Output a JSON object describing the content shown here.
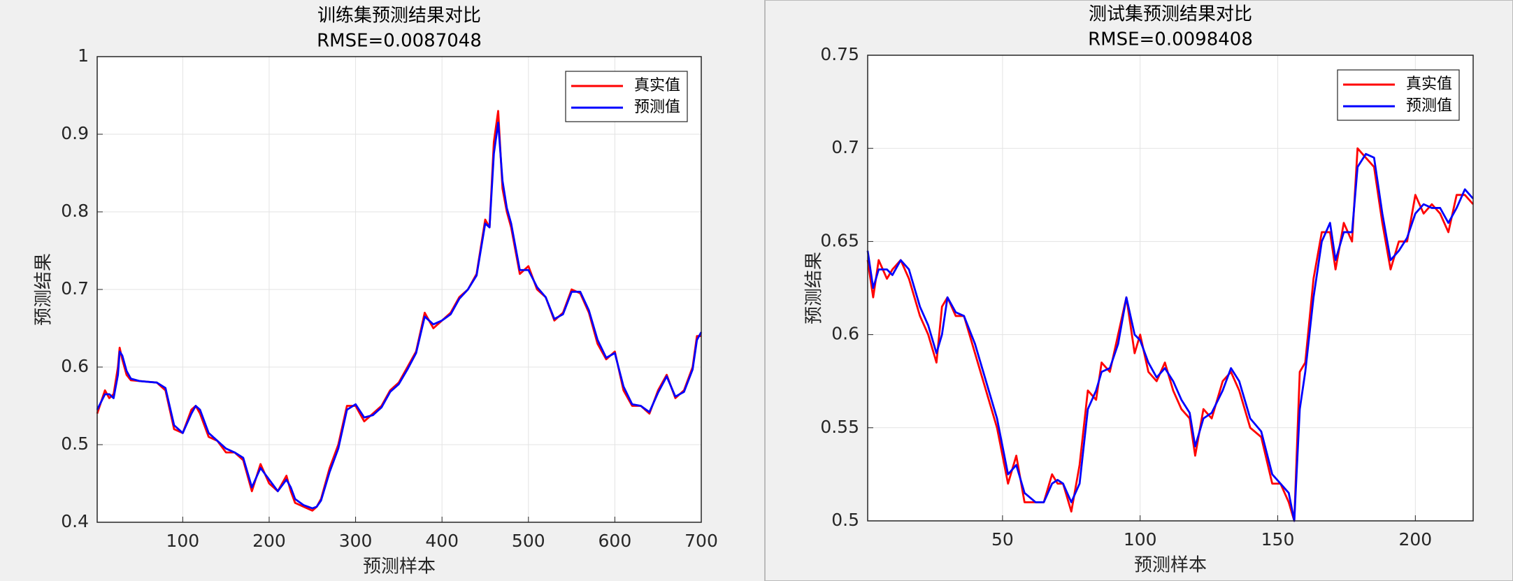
{
  "chart_data": [
    {
      "type": "line",
      "title": "训练集预测结果对比",
      "subtitle": "RMSE=0.0087048",
      "x_label": "预测样本",
      "y_label": "预测结果",
      "xlim": [
        1,
        700
      ],
      "ylim": [
        0.4,
        1
      ],
      "xticks": [
        100,
        200,
        300,
        400,
        500,
        600,
        700
      ],
      "yticks": [
        0.4,
        0.5,
        0.6,
        0.7,
        0.8,
        0.9,
        1
      ],
      "grid": true,
      "legend": "northeast",
      "x": [
        1,
        10,
        15,
        20,
        25,
        27,
        30,
        35,
        40,
        50,
        60,
        70,
        80,
        90,
        100,
        110,
        115,
        120,
        130,
        140,
        150,
        160,
        170,
        180,
        190,
        200,
        210,
        220,
        225,
        230,
        240,
        250,
        255,
        260,
        270,
        280,
        290,
        300,
        310,
        320,
        330,
        340,
        350,
        360,
        370,
        380,
        390,
        400,
        410,
        420,
        430,
        440,
        450,
        455,
        460,
        465,
        470,
        475,
        480,
        490,
        500,
        510,
        520,
        530,
        540,
        550,
        560,
        570,
        580,
        590,
        600,
        610,
        620,
        630,
        640,
        650,
        660,
        670,
        680,
        690,
        695,
        700
      ],
      "series": [
        {
          "name": "真实值",
          "color": "#ff0000",
          "values": [
            0.54,
            0.57,
            0.56,
            0.565,
            0.6,
            0.625,
            0.61,
            0.59,
            0.583,
            0.582,
            0.581,
            0.58,
            0.57,
            0.52,
            0.515,
            0.545,
            0.55,
            0.54,
            0.51,
            0.505,
            0.49,
            0.49,
            0.48,
            0.44,
            0.475,
            0.45,
            0.44,
            0.46,
            0.44,
            0.425,
            0.42,
            0.415,
            0.42,
            0.43,
            0.47,
            0.5,
            0.55,
            0.55,
            0.53,
            0.54,
            0.55,
            0.57,
            0.58,
            0.6,
            0.62,
            0.67,
            0.65,
            0.66,
            0.67,
            0.69,
            0.7,
            0.72,
            0.79,
            0.78,
            0.89,
            0.93,
            0.83,
            0.8,
            0.78,
            0.72,
            0.73,
            0.7,
            0.69,
            0.66,
            0.67,
            0.7,
            0.695,
            0.67,
            0.63,
            0.61,
            0.62,
            0.57,
            0.55,
            0.55,
            0.54,
            0.57,
            0.59,
            0.56,
            0.57,
            0.6,
            0.64,
            0.64
          ]
        },
        {
          "name": "预测值",
          "color": "#0000ff",
          "values": [
            0.545,
            0.565,
            0.565,
            0.56,
            0.59,
            0.62,
            0.615,
            0.595,
            0.585,
            0.582,
            0.581,
            0.58,
            0.573,
            0.525,
            0.515,
            0.54,
            0.55,
            0.545,
            0.515,
            0.505,
            0.495,
            0.49,
            0.483,
            0.445,
            0.47,
            0.455,
            0.44,
            0.455,
            0.445,
            0.43,
            0.422,
            0.418,
            0.42,
            0.428,
            0.465,
            0.495,
            0.545,
            0.552,
            0.535,
            0.538,
            0.548,
            0.568,
            0.578,
            0.597,
            0.618,
            0.665,
            0.655,
            0.66,
            0.668,
            0.688,
            0.7,
            0.718,
            0.785,
            0.78,
            0.875,
            0.915,
            0.84,
            0.805,
            0.785,
            0.725,
            0.725,
            0.703,
            0.69,
            0.662,
            0.668,
            0.697,
            0.697,
            0.673,
            0.635,
            0.612,
            0.618,
            0.575,
            0.552,
            0.55,
            0.542,
            0.567,
            0.588,
            0.562,
            0.568,
            0.597,
            0.635,
            0.645
          ]
        }
      ]
    },
    {
      "type": "line",
      "title": "测试集预测结果对比",
      "subtitle": "RMSE=0.0098408",
      "x_label": "预测样本",
      "y_label": "预测结果",
      "xlim": [
        1,
        221
      ],
      "ylim": [
        0.5,
        0.75
      ],
      "xticks": [
        50,
        100,
        150,
        200
      ],
      "yticks": [
        0.5,
        0.55,
        0.6,
        0.65,
        0.7,
        0.75
      ],
      "grid": true,
      "legend": "northeast",
      "x": [
        1,
        3,
        5,
        8,
        10,
        13,
        16,
        20,
        23,
        26,
        28,
        30,
        33,
        36,
        40,
        44,
        48,
        52,
        55,
        58,
        62,
        65,
        68,
        70,
        72,
        75,
        78,
        81,
        84,
        86,
        89,
        92,
        95,
        98,
        100,
        103,
        106,
        109,
        112,
        115,
        118,
        120,
        123,
        126,
        130,
        133,
        136,
        140,
        144,
        148,
        151,
        154,
        156,
        158,
        160,
        163,
        166,
        169,
        171,
        174,
        177,
        179,
        182,
        185,
        188,
        191,
        194,
        197,
        200,
        203,
        206,
        209,
        212,
        215,
        218,
        221
      ],
      "series": [
        {
          "name": "真实值",
          "color": "#ff0000",
          "values": [
            0.64,
            0.62,
            0.64,
            0.63,
            0.635,
            0.64,
            0.63,
            0.61,
            0.6,
            0.585,
            0.615,
            0.62,
            0.61,
            0.61,
            0.59,
            0.57,
            0.55,
            0.52,
            0.535,
            0.51,
            0.51,
            0.51,
            0.525,
            0.52,
            0.52,
            0.505,
            0.53,
            0.57,
            0.565,
            0.585,
            0.58,
            0.6,
            0.62,
            0.59,
            0.6,
            0.58,
            0.575,
            0.585,
            0.57,
            0.56,
            0.555,
            0.535,
            0.56,
            0.555,
            0.575,
            0.58,
            0.57,
            0.55,
            0.545,
            0.52,
            0.52,
            0.51,
            0.5,
            0.58,
            0.585,
            0.63,
            0.655,
            0.655,
            0.635,
            0.66,
            0.65,
            0.7,
            0.695,
            0.69,
            0.66,
            0.635,
            0.65,
            0.65,
            0.675,
            0.665,
            0.67,
            0.665,
            0.655,
            0.675,
            0.675,
            0.67
          ]
        },
        {
          "name": "预测值",
          "color": "#0000ff",
          "values": [
            0.645,
            0.625,
            0.635,
            0.635,
            0.632,
            0.64,
            0.635,
            0.615,
            0.605,
            0.59,
            0.6,
            0.62,
            0.612,
            0.61,
            0.595,
            0.575,
            0.555,
            0.525,
            0.53,
            0.515,
            0.51,
            0.51,
            0.52,
            0.522,
            0.52,
            0.51,
            0.52,
            0.56,
            0.57,
            0.58,
            0.582,
            0.595,
            0.62,
            0.6,
            0.597,
            0.585,
            0.577,
            0.582,
            0.575,
            0.565,
            0.558,
            0.54,
            0.555,
            0.558,
            0.57,
            0.582,
            0.575,
            0.555,
            0.548,
            0.525,
            0.52,
            0.515,
            0.5,
            0.56,
            0.58,
            0.62,
            0.65,
            0.66,
            0.64,
            0.655,
            0.655,
            0.69,
            0.697,
            0.695,
            0.665,
            0.64,
            0.645,
            0.652,
            0.665,
            0.67,
            0.668,
            0.668,
            0.66,
            0.668,
            0.678,
            0.673
          ]
        }
      ]
    }
  ]
}
